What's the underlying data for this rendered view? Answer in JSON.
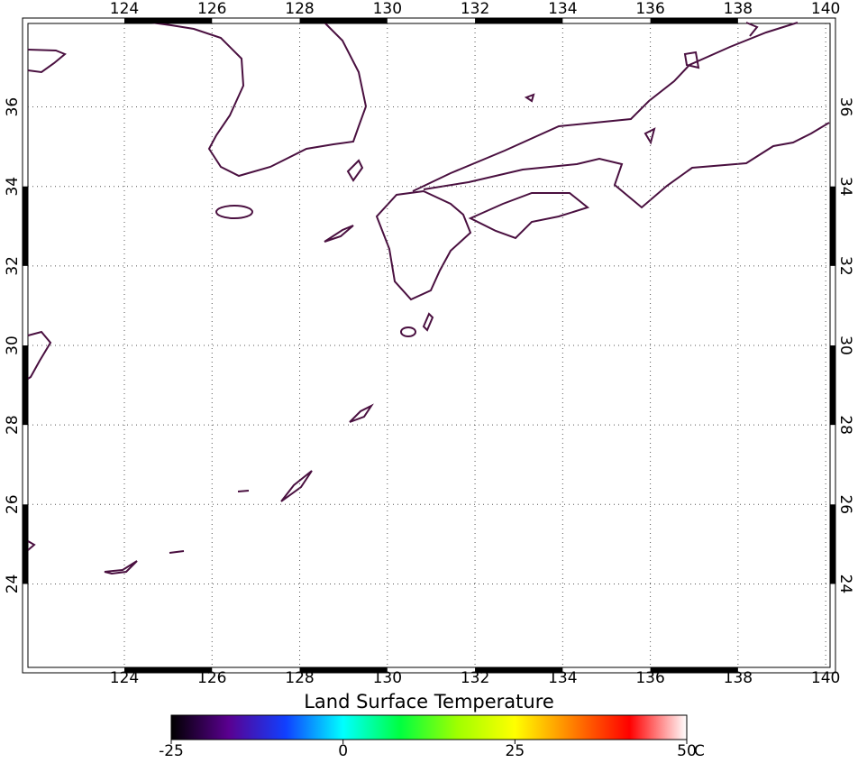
{
  "map": {
    "xlim": [
      121.8,
      140.1
    ],
    "ylim": [
      21.9,
      38.1
    ],
    "xticks": [
      124,
      126,
      128,
      130,
      132,
      134,
      136,
      138,
      140
    ],
    "yticks": [
      24,
      26,
      28,
      30,
      32,
      34,
      36
    ],
    "grid": true,
    "coast_color": "#4a1040"
  },
  "colorbar": {
    "title": "Land Surface Temperature",
    "range": [
      -25,
      50
    ],
    "ticks": [
      -25,
      0,
      25,
      50
    ],
    "unit": "C",
    "colors": [
      "#000000",
      "#5a0090",
      "#1040ff",
      "#00ffff",
      "#00ff40",
      "#a0ff00",
      "#ffff00",
      "#ff8000",
      "#ff0000",
      "#ffffff"
    ]
  }
}
